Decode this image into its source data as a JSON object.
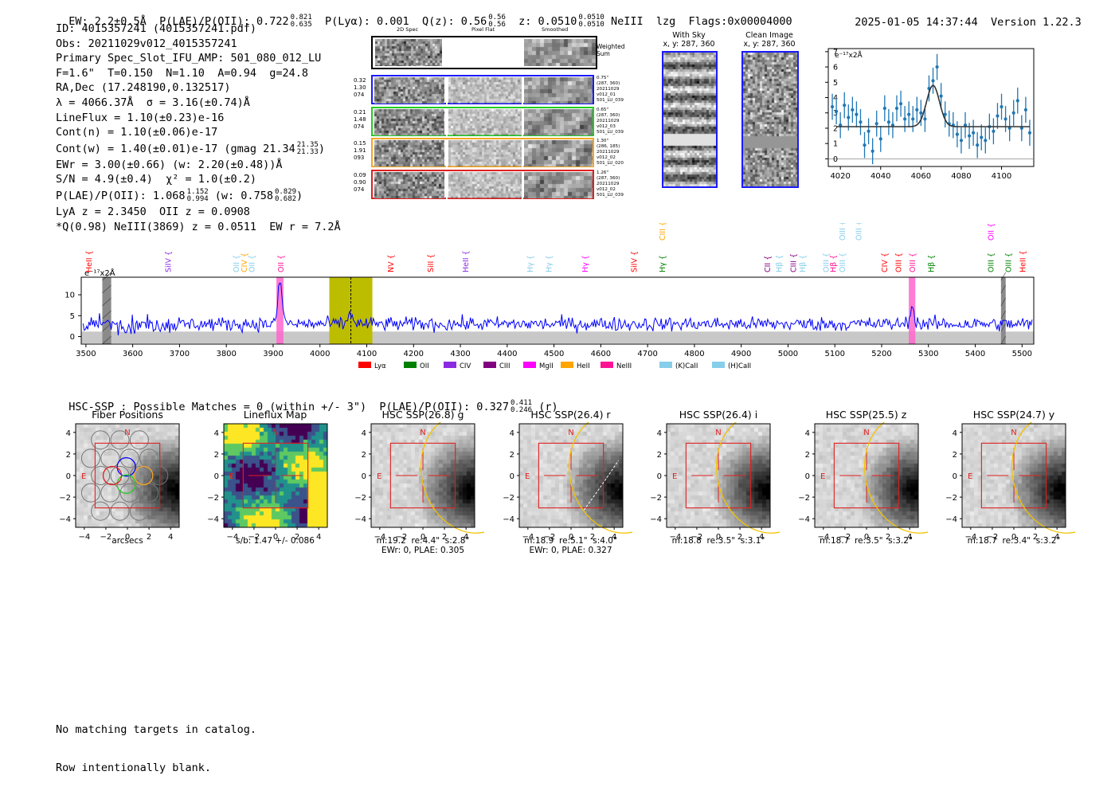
{
  "header": {
    "ew": "EW: 2.2±0.5Å",
    "plae_label": "P(LAE)/P(OII): 0.722",
    "plae_hi": "0.821",
    "plae_lo": "0.635",
    "plya": "P(Lyα): 0.001",
    "qz_label": "Q(z): 0.56",
    "qz_hi": "0.56",
    "qz_lo": "0.56",
    "z_label": "z: 0.0510",
    "z_hi": "0.0510",
    "z_lo": "0.0510",
    "line": "NeIII",
    "lzg": "lzg",
    "flags": "Flags:0x00004000",
    "datetime": "2025-01-05 14:37:44",
    "version": "Version 1.22.3"
  },
  "info": {
    "id": "ID: 4015357241 (4015357241.pdf)",
    "obs": "Obs: 20211029v012_4015357241",
    "primary": "Primary Spec_Slot_IFU_AMP: 501_080_012_LU",
    "fparams": "F=1.6\"  T=0.150  N=1.10  A=0.94  g=24.8",
    "radec": "RA,Dec (17.248190,0.132517)",
    "lambda": "λ = 4066.37Å  σ = 3.16(±0.74)Å",
    "lineflux": "LineFlux = 1.10(±0.23)e-16",
    "contn": "Cont(n) = 1.10(±0.06)e-17",
    "contw": "Cont(w) = 1.40(±0.01)e-17 (gmag 21.34",
    "contw_hi": "21.35",
    "contw_lo": "21.33",
    "contw_close": ")",
    "ewr": "EWr = 3.00(±0.66) (w: 2.20(±0.48))Å",
    "sn": "S/N = 4.9(±0.4)  χ² = 1.0(±0.2)",
    "plae": "P(LAE)/P(OII): 1.068",
    "plae_hi": "1.152",
    "plae_lo": "0.994",
    "plae_w": "(w: 0.758",
    "plae_w_hi": "0.829",
    "plae_w_lo": "0.682",
    "plae_close": ")",
    "lya": "LyA z = 2.3450  OII z = 0.0908",
    "q": "*Q(0.98) NeIII(3869) z = 0.0511  EW r = 7.2Å"
  },
  "cutouts": {
    "col_2dspec": "2D Spec",
    "col_pixflat": "Pixel Flat",
    "col_smoothed": "Smoothed",
    "weighted_sum": "Weighted Sum",
    "rows": [
      {
        "left": [
          "0.32",
          "1.30",
          "074"
        ],
        "right": [
          "0.75\"",
          "(287, 360)",
          "20211029",
          "v012_01",
          "501_LU_039"
        ],
        "color": "#1a1aff"
      },
      {
        "left": [
          "0.21",
          "1.48",
          "074"
        ],
        "right": [
          "0.65\"",
          "(287, 360)",
          "20211029",
          "v012_03",
          "501_LU_039"
        ],
        "color": "#22cc22"
      },
      {
        "left": [
          "0.15",
          "1.91",
          "093"
        ],
        "right": [
          "1.30\"",
          "(286, 185)",
          "20211029",
          "v012_02",
          "501_LU_020"
        ],
        "color": "#f5a623"
      },
      {
        "left": [
          "0.09",
          "0.90",
          "074"
        ],
        "right": [
          "1.26\"",
          "(287, 360)",
          "20211029",
          "v012_02",
          "501_LU_039"
        ],
        "color": "#e02020"
      }
    ]
  },
  "with_sky": {
    "title": "With Sky",
    "coords": "x, y: 287, 360"
  },
  "clean_image": {
    "title": "Clean Image",
    "coords": "x, y: 287, 360"
  },
  "colors": {
    "spectrum": "#0000ff",
    "fit": "#333333",
    "points": "#1f77b4",
    "hsc_box": "#e02020",
    "ellipse": "#f2c200",
    "olive": "#bdbd00",
    "pink": "#ff66cc"
  },
  "legend": [
    {
      "label": "Lyα",
      "color": "#ff0000"
    },
    {
      "label": "OII",
      "color": "#008000"
    },
    {
      "label": "CIV",
      "color": "#8a2be2"
    },
    {
      "label": "CIII",
      "color": "#800080"
    },
    {
      "label": "MgII",
      "color": "#ff00ff"
    },
    {
      "label": "HeII",
      "color": "#ffa500"
    },
    {
      "label": "NeIII",
      "color": "#ff1493"
    },
    {
      "label": "(K)CaII",
      "color": "#87ceeb"
    },
    {
      "label": "(H)CaII",
      "color": "#87ceeb"
    }
  ],
  "hsc_title": {
    "text": "HSC-SSP : Possible Matches = 0 (within +/- 3\")  P(LAE)/P(OII): 0.327",
    "hi": "0.411",
    "lo": "0.246",
    "suffix": "(r)"
  },
  "panels": [
    {
      "title": "Fiber Positions",
      "caption1": "arcsecs",
      "caption2": ""
    },
    {
      "title": "Lineflux Map",
      "caption1": "s/b: 1.47 +/- 0.086",
      "caption2": ""
    },
    {
      "title": "HSC SSP(26.8) g",
      "caption1": "m:19.2  re:4.4\"  s:2.8\"",
      "caption2": "EWr: 0, PLAE: 0.305"
    },
    {
      "title": "HSC SSP(26.4) r",
      "caption1": "m:18.9  re:5.1\"  s:4.0\"",
      "caption2": "EWr: 0, PLAE: 0.327"
    },
    {
      "title": "HSC SSP(26.4) i",
      "caption1": "m:18.8  re:3.5\"  s:3.1\"",
      "caption2": ""
    },
    {
      "title": "HSC SSP(25.5) z",
      "caption1": "m:18.7  re:3.5\"  s:3.2\"",
      "caption2": ""
    },
    {
      "title": "HSC SSP(24.7) y",
      "caption1": "m:18.7  re:3.4\"  s:3.2\"",
      "caption2": ""
    }
  ],
  "panel_axis": {
    "ticks": [
      "4",
      "2",
      "0",
      "−2",
      "−4"
    ],
    "xticks": [
      "−4",
      "−2",
      "0",
      "2",
      "4"
    ],
    "north": "N",
    "east": "E"
  },
  "footer": {
    "line1": "No matching targets in catalog.",
    "line2": "Row intentionally blank."
  },
  "chart_data": [
    {
      "type": "scatter",
      "title": "",
      "ylabel_note": "e⁻¹⁷x2Å",
      "xlim": [
        4014,
        4116
      ],
      "ylim": [
        -0.5,
        7.2
      ],
      "xticks": [
        4020,
        4040,
        4060,
        4080,
        4100
      ],
      "yticks": [
        0,
        1,
        2,
        3,
        4,
        5,
        6,
        7
      ],
      "continuum": 2.1,
      "peak_center": 4066,
      "peak_amp": 2.7,
      "peak_sigma": 3.2,
      "x": [
        4016,
        4018,
        4020,
        4022,
        4024,
        4026,
        4028,
        4030,
        4032,
        4034,
        4036,
        4038,
        4040,
        4042,
        4044,
        4046,
        4048,
        4050,
        4052,
        4054,
        4056,
        4058,
        4060,
        4062,
        4064,
        4066,
        4068,
        4070,
        4072,
        4074,
        4076,
        4078,
        4080,
        4082,
        4084,
        4086,
        4088,
        4090,
        4092,
        4094,
        4096,
        4098,
        4100,
        4102,
        4104,
        4106,
        4108,
        4110,
        4112,
        4114
      ],
      "y": [
        3.4,
        3.1,
        2.2,
        3.5,
        2.7,
        3.2,
        2.9,
        2.4,
        0.9,
        1.8,
        0.5,
        2.3,
        1.3,
        3.3,
        2.4,
        2.2,
        3.3,
        3.6,
        2.6,
        2.9,
        2.6,
        3.2,
        3.0,
        2.6,
        4.6,
        5.1,
        6.0,
        4.1,
        2.9,
        2.3,
        2.2,
        1.6,
        1.2,
        2.2,
        1.5,
        1.7,
        0.9,
        1.4,
        1.2,
        2.1,
        1.8,
        2.8,
        3.4,
        2.6,
        2.0,
        3.0,
        3.8,
        2.0,
        3.2,
        1.7
      ],
      "err": 0.85
    },
    {
      "type": "line",
      "title": "",
      "ylabel_note": "e⁻¹⁷x2Å",
      "xlim": [
        3490,
        5525
      ],
      "ylim": [
        -1.8,
        14.2
      ],
      "xticks": [
        3500,
        3600,
        3700,
        3800,
        3900,
        4000,
        4100,
        4200,
        4300,
        4400,
        4500,
        4600,
        4700,
        4800,
        4900,
        5000,
        5100,
        5200,
        5300,
        5400,
        5500
      ],
      "yticks": [
        0,
        5,
        10
      ],
      "continuum": 3.0,
      "noise": 1.4,
      "emission_lines": [
        {
          "x": 3915,
          "amp": 9.5
        },
        {
          "x": 4066,
          "amp": 2.6
        },
        {
          "x": 5265,
          "amp": 3.8
        }
      ],
      "highlight_bands": [
        {
          "x0": 3907,
          "x1": 3922,
          "kind": "pink"
        },
        {
          "x0": 4020,
          "x1": 4112,
          "kind": "olive"
        },
        {
          "x0": 5258,
          "x1": 5272,
          "kind": "pink"
        }
      ],
      "masked_bands": [
        {
          "x0": 3535,
          "x1": 3554
        },
        {
          "x0": 5455,
          "x1": 5465
        }
      ],
      "marker_lines": [
        {
          "x": 4066
        }
      ],
      "line_labels": [
        {
          "label": "HeII",
          "x": 3505,
          "color": "#ff0000",
          "row": 0
        },
        {
          "label": "SiIV",
          "x": 3675,
          "color": "#8a2be2",
          "row": 0
        },
        {
          "label": "OII",
          "x": 3820,
          "color": "#87ceeb",
          "row": 0
        },
        {
          "label": "CIV",
          "x": 3837,
          "color": "#ffa500",
          "row": 0
        },
        {
          "label": "OII",
          "x": 3853,
          "color": "#87ceeb",
          "row": 0
        },
        {
          "label": "OII",
          "x": 3915,
          "color": "#ff1493",
          "row": 0
        },
        {
          "label": "NV",
          "x": 4150,
          "color": "#ff0000",
          "row": 0
        },
        {
          "label": "SiII",
          "x": 4235,
          "color": "#ff0000",
          "row": 0
        },
        {
          "label": "HeII",
          "x": 4310,
          "color": "#8a2be2",
          "row": 0
        },
        {
          "label": "Hγ",
          "x": 4448,
          "color": "#87ceeb",
          "row": 0
        },
        {
          "label": "Hγ",
          "x": 4488,
          "color": "#87ceeb",
          "row": 0
        },
        {
          "label": "Hγ",
          "x": 4565,
          "color": "#ff00ff",
          "row": 0
        },
        {
          "label": "SiIV",
          "x": 4670,
          "color": "#ff0000",
          "row": 0
        },
        {
          "label": "Hγ",
          "x": 4730,
          "color": "#008000",
          "row": 0
        },
        {
          "label": "CIII",
          "x": 4730,
          "color": "#ffa500",
          "row": 1
        },
        {
          "label": "CII",
          "x": 4955,
          "color": "#800080",
          "row": 0
        },
        {
          "label": "Hβ",
          "x": 4980,
          "color": "#87ceeb",
          "row": 0
        },
        {
          "label": "CIII",
          "x": 5010,
          "color": "#800080",
          "row": 0
        },
        {
          "label": "Hβ",
          "x": 5030,
          "color": "#87ceeb",
          "row": 0
        },
        {
          "label": "OIII",
          "x": 5080,
          "color": "#87ceeb",
          "row": 0
        },
        {
          "label": "OIII",
          "x": 5115,
          "color": "#87ceeb",
          "row": 1
        },
        {
          "label": "OIII",
          "x": 5150,
          "color": "#87ceeb",
          "row": 1
        },
        {
          "label": "OIII",
          "x": 5115,
          "color": "#87ceeb",
          "row": 0
        },
        {
          "label": "Hβ",
          "x": 5095,
          "color": "#ff1493",
          "row": 0
        },
        {
          "label": "CIV",
          "x": 5205,
          "color": "#ff0000",
          "row": 0
        },
        {
          "label": "OIII",
          "x": 5235,
          "color": "#ff0000",
          "row": 0
        },
        {
          "label": "OIII",
          "x": 5265,
          "color": "#ff1493",
          "row": 0
        },
        {
          "label": "Hβ",
          "x": 5305,
          "color": "#008000",
          "row": 0
        },
        {
          "label": "OIII",
          "x": 5432,
          "color": "#008000",
          "row": 0
        },
        {
          "label": "OII",
          "x": 5432,
          "color": "#ff00ff",
          "row": 1
        },
        {
          "label": "OIII",
          "x": 5470,
          "color": "#008000",
          "row": 0
        },
        {
          "label": "HeII",
          "x": 5500,
          "color": "#ff0000",
          "row": 0
        }
      ]
    }
  ]
}
